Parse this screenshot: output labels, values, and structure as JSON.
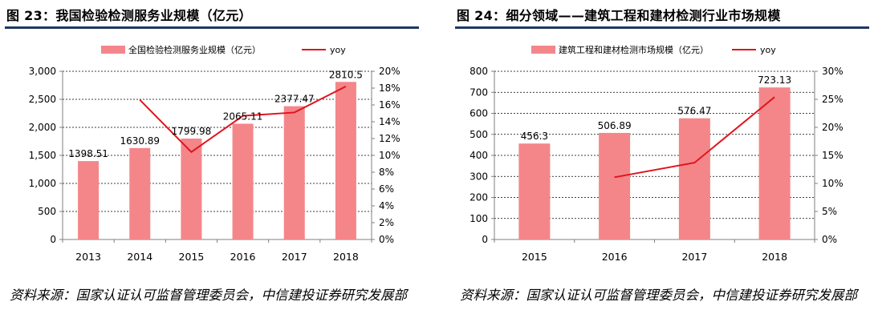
{
  "colors": {
    "bar": "#f4868a",
    "line": "#e0141d",
    "title_rule": "#1f3864",
    "axis": "#7f7f7f",
    "grid": "#000000"
  },
  "charts": [
    {
      "title": "图 23：我国检验检测服务业规模（亿元）",
      "source": "资料来源：国家认证认可监督管理委员会，中信建投证券研究发展部",
      "chart_data": {
        "type": "bar",
        "categories": [
          "2013",
          "2014",
          "2015",
          "2016",
          "2017",
          "2018"
        ],
        "series": [
          {
            "name": "全国检验检测服务业规模（亿元）",
            "type": "bar",
            "axis": "left",
            "values": [
              1398.51,
              1630.89,
              1799.98,
              2065.11,
              2377.47,
              2810.5
            ],
            "labels": [
              "1398.51",
              "1630.89",
              "1799.98",
              "2065.11",
              "2377.47",
              "2810.5"
            ]
          },
          {
            "name": "yoy",
            "type": "line",
            "axis": "right",
            "values": [
              null,
              16.6,
              10.4,
              14.7,
              15.1,
              18.2
            ]
          }
        ],
        "ylim_left": [
          0,
          3000
        ],
        "yticks_left": [
          "0",
          "500",
          "1,000",
          "1,500",
          "2,000",
          "2,500",
          "3,000"
        ],
        "ylim_right": [
          0,
          20
        ],
        "yticks_right": [
          "0%",
          "2%",
          "4%",
          "6%",
          "8%",
          "10%",
          "12%",
          "14%",
          "16%",
          "18%",
          "20%"
        ],
        "grid": "dashed-horizontal",
        "legend": "top-center"
      }
    },
    {
      "title": "图 24：细分领域——建筑工程和建材检测行业市场规模",
      "source": "资料来源：国家认证认可监督管理委员会，中信建投证券研究发展部",
      "chart_data": {
        "type": "bar",
        "categories": [
          "2015",
          "2016",
          "2017",
          "2018"
        ],
        "series": [
          {
            "name": "建筑工程和建材检测市场规模（亿元）",
            "type": "bar",
            "axis": "left",
            "values": [
              456.3,
              506.89,
              576.47,
              723.13
            ],
            "labels": [
              "456.3",
              "506.89",
              "576.47",
              "723.13"
            ]
          },
          {
            "name": "yoy",
            "type": "line",
            "axis": "right",
            "values": [
              null,
              11.1,
              13.7,
              25.4
            ]
          }
        ],
        "ylim_left": [
          0,
          800
        ],
        "yticks_left": [
          "0",
          "100",
          "200",
          "300",
          "400",
          "500",
          "600",
          "700",
          "800"
        ],
        "ylim_right": [
          0,
          30
        ],
        "yticks_right": [
          "0%",
          "5%",
          "10%",
          "15%",
          "20%",
          "25%",
          "30%"
        ],
        "grid": "dashed-horizontal",
        "legend": "top-center"
      }
    }
  ]
}
